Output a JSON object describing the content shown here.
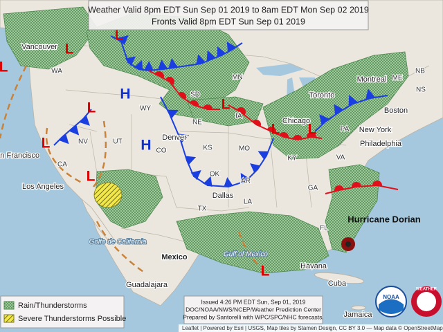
{
  "header": {
    "line1": "Weather Valid 8pm EDT Sun Sep 01 2019 to 8am EDT Mon Sep 02 2019",
    "line2": "Fronts Valid 8pm EDT Sun Sep 01 2019"
  },
  "places": [
    "Vancouver",
    "WA",
    "WY",
    "SD",
    "MN",
    "NE",
    "IA",
    "KS",
    "MO",
    "PA",
    "Toronto",
    "Montreal",
    "ME",
    "NB",
    "NS",
    "Boston",
    "New York",
    "Philadelphia",
    "Chicago",
    "KY",
    "VA",
    "GA",
    "AR",
    "LA",
    "OK",
    "TX",
    "Dallas",
    "CO",
    "Denver",
    "UT",
    "NV",
    "CA",
    "San Francisco",
    "Los Angeles",
    "FL",
    "Gulf of Mexico",
    "Mexico",
    "Havana",
    "Cuba",
    "Jamaica",
    "Guadalajara",
    "Golfo de California"
  ],
  "storm": "Hurricane Dorian",
  "lows": [
    "L",
    "L",
    "L",
    "L",
    "L",
    "L",
    "L",
    "L",
    "L",
    "L"
  ],
  "highs": [
    "H",
    "H"
  ],
  "legend": [
    "Rain/Thunderstorms",
    "Severe Thunderstorms Possible"
  ],
  "issued": [
    "Issued 4:26 PM EDT Sun, Sep 01, 2019",
    "DOC/NOAA/NWS/NCEP/Weather Prediction Center",
    "Prepared by Santorelli with WPC/SPC/NHC forecasts."
  ],
  "logos": [
    "NOAA",
    "WEATHER"
  ],
  "attribution": "Leaflet | Powered by Esri | USGS, Map tiles by Stamen Design, CC BY 3.0 — Map data © OpenStreetMap"
}
